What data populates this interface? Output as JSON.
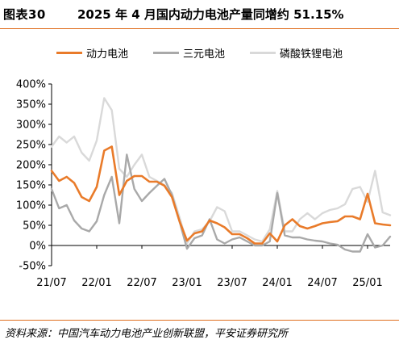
{
  "header": {
    "figure_number": "图表30",
    "title": "2025 年 4 月国内动力电池产量同增约 51.15%"
  },
  "footer": {
    "source": "资料来源：中国汽车动力电池产业创新联盟，平安证券研究所"
  },
  "colors": {
    "accent": "#e06e1f",
    "series": [
      "#e97b2a",
      "#a9a9a9",
      "#d9d9d9"
    ]
  },
  "chart_data": {
    "type": "line",
    "title": "2025 年 4 月国内动力电池产量同增约 51.15%",
    "xlabel": "",
    "ylabel": "",
    "ylim": [
      -50,
      400
    ],
    "y_ticks": [
      -50,
      0,
      50,
      100,
      150,
      200,
      250,
      300,
      350,
      400
    ],
    "y_tick_labels": [
      "-50%",
      "0%",
      "50%",
      "100%",
      "150%",
      "200%",
      "250%",
      "300%",
      "350%",
      "400%"
    ],
    "x_tick_labels": [
      "21/07",
      "22/01",
      "22/07",
      "23/01",
      "23/07",
      "24/01",
      "24/07",
      "25/01"
    ],
    "x_tick_index": [
      0,
      6,
      12,
      18,
      24,
      30,
      36,
      42
    ],
    "n_points": 46,
    "legend_position": "top",
    "grid": false,
    "series": [
      {
        "name": "动力电池",
        "values": [
          185,
          160,
          170,
          155,
          120,
          110,
          145,
          235,
          245,
          125,
          160,
          172,
          172,
          158,
          158,
          148,
          120,
          60,
          12,
          30,
          35,
          62,
          55,
          45,
          28,
          28,
          18,
          5,
          5,
          30,
          10,
          50,
          65,
          48,
          42,
          48,
          55,
          58,
          60,
          72,
          72,
          65,
          128,
          55,
          52,
          50
        ]
      },
      {
        "name": "三元电池",
        "values": [
          140,
          92,
          100,
          62,
          42,
          35,
          60,
          125,
          170,
          55,
          225,
          140,
          110,
          130,
          148,
          165,
          125,
          60,
          -8,
          18,
          25,
          65,
          15,
          5,
          15,
          20,
          10,
          0,
          0,
          10,
          130,
          25,
          20,
          20,
          15,
          12,
          10,
          5,
          2,
          -10,
          -15,
          -15,
          28,
          -5,
          0,
          22
        ]
      },
      {
        "name": "磷酸铁锂电池",
        "values": [
          245,
          270,
          255,
          270,
          230,
          210,
          260,
          365,
          335,
          190,
          170,
          200,
          225,
          170,
          160,
          150,
          130,
          70,
          5,
          35,
          40,
          60,
          95,
          85,
          35,
          35,
          25,
          15,
          10,
          40,
          135,
          35,
          35,
          65,
          80,
          65,
          80,
          88,
          92,
          102,
          140,
          145,
          108,
          185,
          82,
          75
        ]
      }
    ]
  }
}
